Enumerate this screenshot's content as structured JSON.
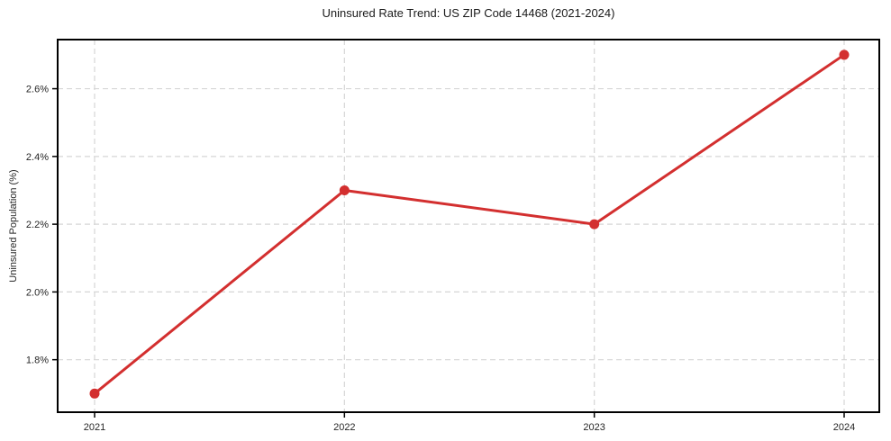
{
  "chart_data": {
    "type": "line",
    "title": "Uninsured Rate Trend: US ZIP Code 14468 (2021-2024)",
    "xlabel": "",
    "ylabel": "Uninsured Population (%)",
    "categories": [
      "2021",
      "2022",
      "2023",
      "2024"
    ],
    "values": [
      1.7,
      2.3,
      2.2,
      2.7
    ],
    "yticks": [
      1.8,
      2.0,
      2.2,
      2.4,
      2.6
    ],
    "ytick_labels": [
      "1.8%",
      "2.0%",
      "2.2%",
      "2.4%",
      "2.6%"
    ],
    "ylim": [
      1.645,
      2.745
    ],
    "grid": true,
    "legend": "none",
    "colors": {
      "line": "#d32f2f",
      "marker": "#d32f2f",
      "grid": "#d6d6d6",
      "spine": "#000000",
      "tick_text": "#262626"
    }
  }
}
